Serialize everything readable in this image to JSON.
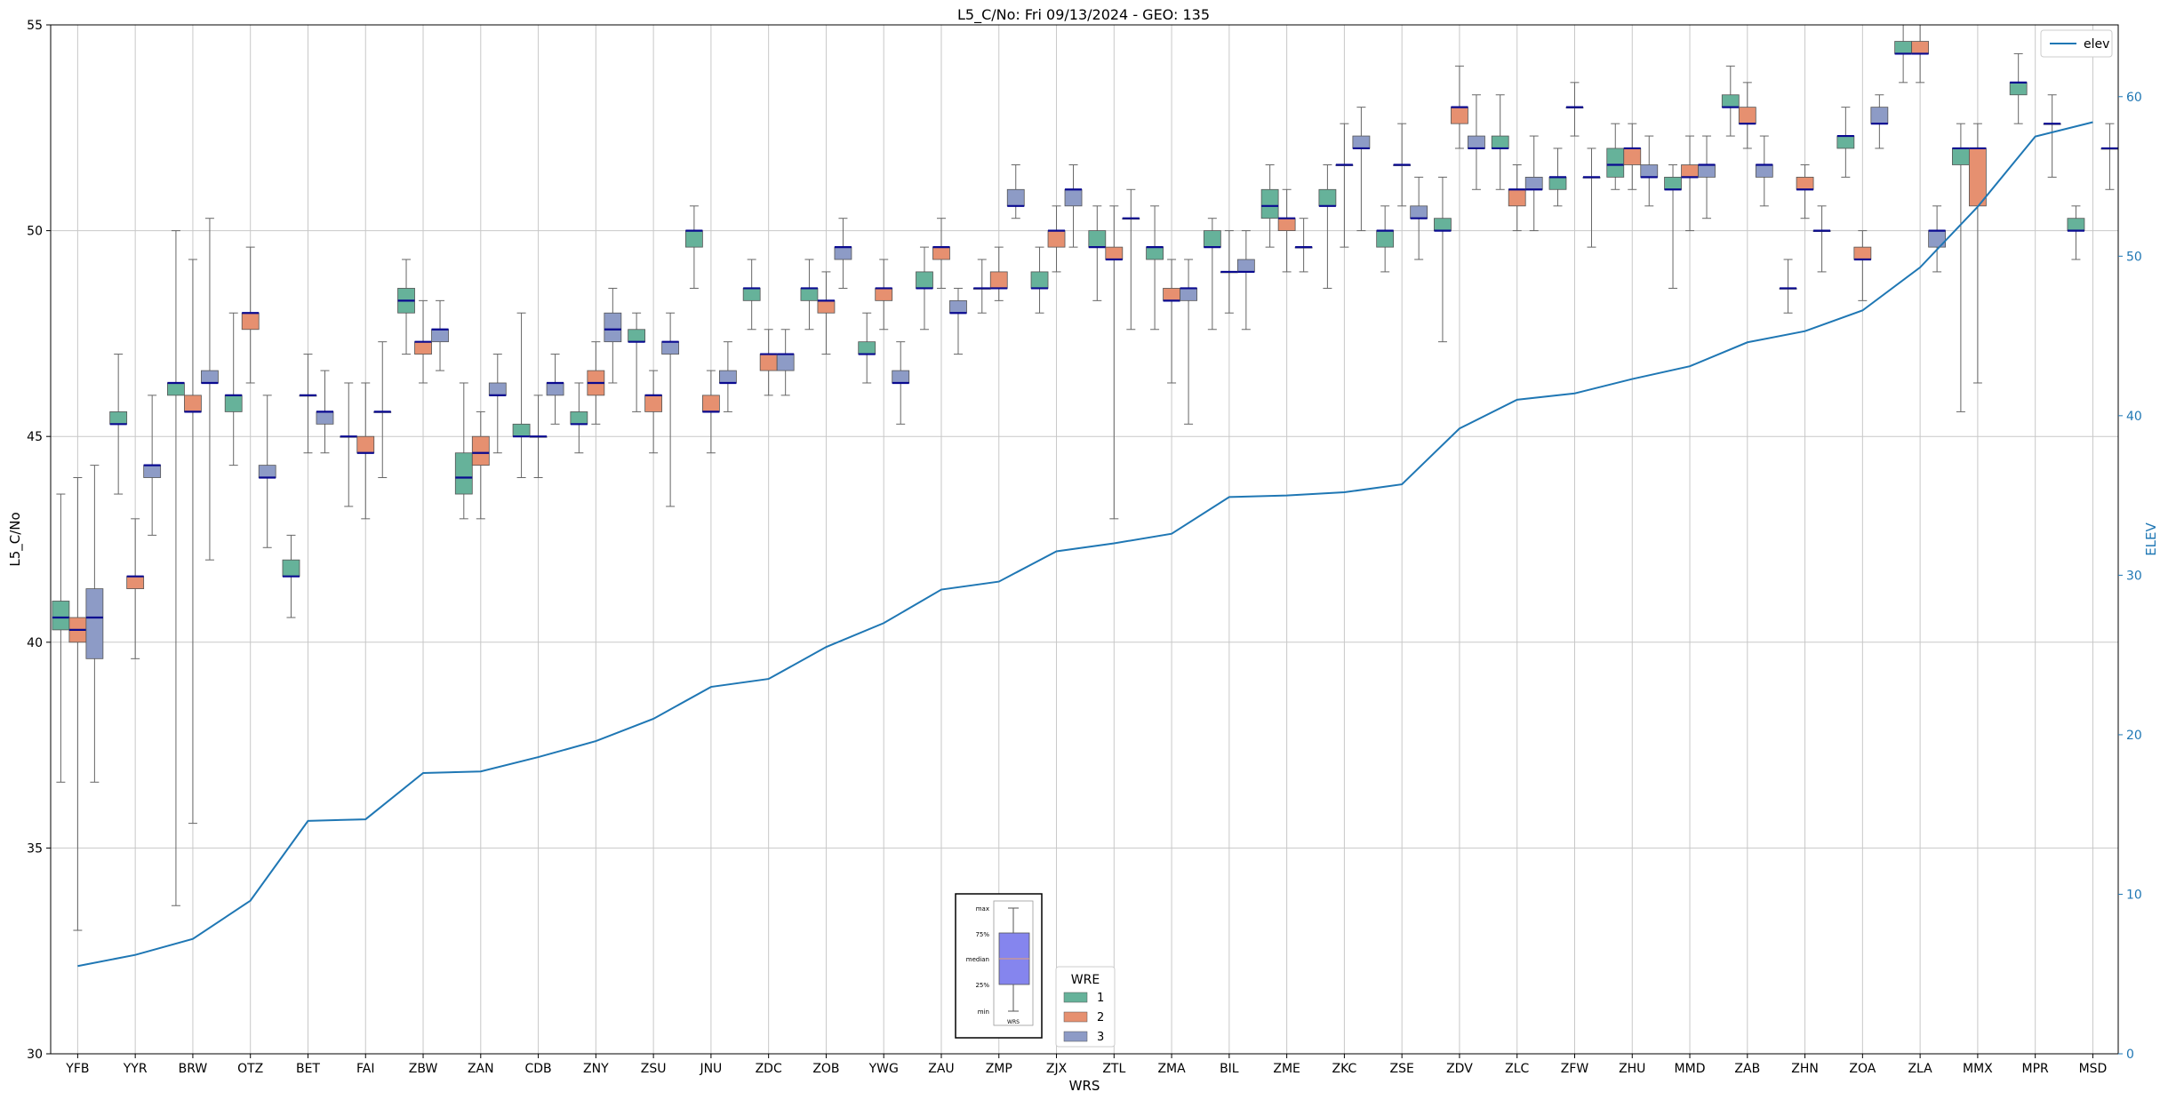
{
  "chart_data": {
    "type": "box",
    "title": "L5_C/No: Fri 09/13/2024 - GEO: 135",
    "xlabel": "WRS",
    "ylabel": "L5_C/No",
    "y2label": "ELEV",
    "ylim": [
      30,
      55
    ],
    "y2lim": [
      0,
      64.5
    ],
    "yticks": [
      30,
      35,
      40,
      45,
      50,
      55
    ],
    "y2ticks": [
      0,
      10,
      20,
      30,
      40,
      50,
      60
    ],
    "grid": true,
    "categories": [
      "YFB",
      "YYR",
      "BRW",
      "OTZ",
      "BET",
      "FAI",
      "ZBW",
      "ZAN",
      "CDB",
      "ZNY",
      "ZSU",
      "JNU",
      "ZDC",
      "ZOB",
      "YWG",
      "ZAU",
      "ZMP",
      "ZJX",
      "ZTL",
      "ZMA",
      "BIL",
      "ZME",
      "ZKC",
      "ZSE",
      "ZDV",
      "ZLC",
      "ZFW",
      "ZHU",
      "MMD",
      "ZAB",
      "ZHN",
      "ZOA",
      "ZLA",
      "MMX",
      "MPR",
      "MSD"
    ],
    "boxes": [
      {
        "cat": "YFB",
        "wre": 1,
        "min": 36.6,
        "q1": 40.3,
        "med": 40.6,
        "q3": 41.0,
        "max": 43.6
      },
      {
        "cat": "YFB",
        "wre": 2,
        "min": 33.0,
        "q1": 40.0,
        "med": 40.3,
        "q3": 40.6,
        "max": 44.0
      },
      {
        "cat": "YFB",
        "wre": 3,
        "min": 36.6,
        "q1": 39.6,
        "med": 40.6,
        "q3": 41.3,
        "max": 44.3
      },
      {
        "cat": "YYR",
        "wre": 1,
        "min": 43.6,
        "q1": 45.3,
        "med": 45.3,
        "q3": 45.6,
        "max": 47.0
      },
      {
        "cat": "YYR",
        "wre": 2,
        "min": 39.6,
        "q1": 41.3,
        "med": 41.6,
        "q3": 41.6,
        "max": 43.0
      },
      {
        "cat": "YYR",
        "wre": 3,
        "min": 42.6,
        "q1": 44.0,
        "med": 44.3,
        "q3": 44.3,
        "max": 46.0
      },
      {
        "cat": "BRW",
        "wre": 1,
        "min": 33.6,
        "q1": 46.0,
        "med": 46.3,
        "q3": 46.3,
        "max": 50.0
      },
      {
        "cat": "BRW",
        "wre": 2,
        "min": 35.6,
        "q1": 45.6,
        "med": 45.6,
        "q3": 46.0,
        "max": 49.3
      },
      {
        "cat": "BRW",
        "wre": 3,
        "min": 42.0,
        "q1": 46.3,
        "med": 46.3,
        "q3": 46.6,
        "max": 50.3
      },
      {
        "cat": "OTZ",
        "wre": 1,
        "min": 44.3,
        "q1": 45.6,
        "med": 46.0,
        "q3": 46.0,
        "max": 48.0
      },
      {
        "cat": "OTZ",
        "wre": 2,
        "min": 46.3,
        "q1": 47.6,
        "med": 48.0,
        "q3": 48.0,
        "max": 49.6
      },
      {
        "cat": "OTZ",
        "wre": 3,
        "min": 42.3,
        "q1": 44.0,
        "med": 44.0,
        "q3": 44.3,
        "max": 46.0
      },
      {
        "cat": "BET",
        "wre": 1,
        "min": 40.6,
        "q1": 41.6,
        "med": 41.6,
        "q3": 42.0,
        "max": 42.6
      },
      {
        "cat": "BET",
        "wre": 2,
        "min": 44.6,
        "q1": 46.0,
        "med": 46.0,
        "q3": 46.0,
        "max": 47.0
      },
      {
        "cat": "BET",
        "wre": 3,
        "min": 44.6,
        "q1": 45.3,
        "med": 45.6,
        "q3": 45.6,
        "max": 46.6
      },
      {
        "cat": "FAI",
        "wre": 1,
        "min": 43.3,
        "q1": 45.0,
        "med": 45.0,
        "q3": 45.0,
        "max": 46.3
      },
      {
        "cat": "FAI",
        "wre": 2,
        "min": 43.0,
        "q1": 44.6,
        "med": 44.6,
        "q3": 45.0,
        "max": 46.3
      },
      {
        "cat": "FAI",
        "wre": 3,
        "min": 44.0,
        "q1": 45.6,
        "med": 45.6,
        "q3": 45.6,
        "max": 47.3
      },
      {
        "cat": "ZBW",
        "wre": 1,
        "min": 47.0,
        "q1": 48.0,
        "med": 48.3,
        "q3": 48.6,
        "max": 49.3
      },
      {
        "cat": "ZBW",
        "wre": 2,
        "min": 46.3,
        "q1": 47.0,
        "med": 47.3,
        "q3": 47.3,
        "max": 48.3
      },
      {
        "cat": "ZBW",
        "wre": 3,
        "min": 46.6,
        "q1": 47.3,
        "med": 47.6,
        "q3": 47.6,
        "max": 48.3
      },
      {
        "cat": "ZAN",
        "wre": 1,
        "min": 43.0,
        "q1": 43.6,
        "med": 44.0,
        "q3": 44.6,
        "max": 46.3
      },
      {
        "cat": "ZAN",
        "wre": 2,
        "min": 43.0,
        "q1": 44.3,
        "med": 44.6,
        "q3": 45.0,
        "max": 45.6
      },
      {
        "cat": "ZAN",
        "wre": 3,
        "min": 44.6,
        "q1": 46.0,
        "med": 46.0,
        "q3": 46.3,
        "max": 47.0
      },
      {
        "cat": "CDB",
        "wre": 1,
        "min": 44.0,
        "q1": 45.0,
        "med": 45.0,
        "q3": 45.3,
        "max": 48.0
      },
      {
        "cat": "CDB",
        "wre": 2,
        "min": 44.0,
        "q1": 45.0,
        "med": 45.0,
        "q3": 45.0,
        "max": 46.0
      },
      {
        "cat": "CDB",
        "wre": 3,
        "min": 45.3,
        "q1": 46.0,
        "med": 46.3,
        "q3": 46.3,
        "max": 47.0
      },
      {
        "cat": "ZNY",
        "wre": 1,
        "min": 44.6,
        "q1": 45.3,
        "med": 45.3,
        "q3": 45.6,
        "max": 46.3
      },
      {
        "cat": "ZNY",
        "wre": 2,
        "min": 45.3,
        "q1": 46.0,
        "med": 46.3,
        "q3": 46.6,
        "max": 47.3
      },
      {
        "cat": "ZNY",
        "wre": 3,
        "min": 46.3,
        "q1": 47.3,
        "med": 47.6,
        "q3": 48.0,
        "max": 48.6
      },
      {
        "cat": "ZSU",
        "wre": 1,
        "min": 45.6,
        "q1": 47.3,
        "med": 47.3,
        "q3": 47.6,
        "max": 48.0
      },
      {
        "cat": "ZSU",
        "wre": 2,
        "min": 44.6,
        "q1": 45.6,
        "med": 46.0,
        "q3": 46.0,
        "max": 46.6
      },
      {
        "cat": "ZSU",
        "wre": 3,
        "min": 43.3,
        "q1": 47.0,
        "med": 47.3,
        "q3": 47.3,
        "max": 48.0
      },
      {
        "cat": "JNU",
        "wre": 1,
        "min": 48.6,
        "q1": 49.6,
        "med": 50.0,
        "q3": 50.0,
        "max": 50.6
      },
      {
        "cat": "JNU",
        "wre": 2,
        "min": 44.6,
        "q1": 45.6,
        "med": 45.6,
        "q3": 46.0,
        "max": 46.6
      },
      {
        "cat": "JNU",
        "wre": 3,
        "min": 45.6,
        "q1": 46.3,
        "med": 46.3,
        "q3": 46.6,
        "max": 47.3
      },
      {
        "cat": "ZDC",
        "wre": 1,
        "min": 47.6,
        "q1": 48.3,
        "med": 48.6,
        "q3": 48.6,
        "max": 49.3
      },
      {
        "cat": "ZDC",
        "wre": 2,
        "min": 46.0,
        "q1": 46.6,
        "med": 47.0,
        "q3": 47.0,
        "max": 47.6
      },
      {
        "cat": "ZDC",
        "wre": 3,
        "min": 46.0,
        "q1": 46.6,
        "med": 47.0,
        "q3": 47.0,
        "max": 47.6
      },
      {
        "cat": "ZOB",
        "wre": 1,
        "min": 47.6,
        "q1": 48.3,
        "med": 48.6,
        "q3": 48.6,
        "max": 49.3
      },
      {
        "cat": "ZOB",
        "wre": 2,
        "min": 47.0,
        "q1": 48.0,
        "med": 48.3,
        "q3": 48.3,
        "max": 49.0
      },
      {
        "cat": "ZOB",
        "wre": 3,
        "min": 48.6,
        "q1": 49.3,
        "med": 49.6,
        "q3": 49.6,
        "max": 50.3
      },
      {
        "cat": "YWG",
        "wre": 1,
        "min": 46.3,
        "q1": 47.0,
        "med": 47.0,
        "q3": 47.3,
        "max": 48.0
      },
      {
        "cat": "YWG",
        "wre": 2,
        "min": 47.6,
        "q1": 48.3,
        "med": 48.6,
        "q3": 48.6,
        "max": 49.3
      },
      {
        "cat": "YWG",
        "wre": 3,
        "min": 45.3,
        "q1": 46.3,
        "med": 46.3,
        "q3": 46.6,
        "max": 47.3
      },
      {
        "cat": "ZAU",
        "wre": 1,
        "min": 47.6,
        "q1": 48.6,
        "med": 48.6,
        "q3": 49.0,
        "max": 49.6
      },
      {
        "cat": "ZAU",
        "wre": 2,
        "min": 48.6,
        "q1": 49.3,
        "med": 49.6,
        "q3": 49.6,
        "max": 50.3
      },
      {
        "cat": "ZAU",
        "wre": 3,
        "min": 47.0,
        "q1": 48.0,
        "med": 48.0,
        "q3": 48.3,
        "max": 48.6
      },
      {
        "cat": "ZMP",
        "wre": 1,
        "min": 48.0,
        "q1": 48.6,
        "med": 48.6,
        "q3": 48.6,
        "max": 49.3
      },
      {
        "cat": "ZMP",
        "wre": 2,
        "min": 48.3,
        "q1": 48.6,
        "med": 48.6,
        "q3": 49.0,
        "max": 49.6
      },
      {
        "cat": "ZMP",
        "wre": 3,
        "min": 50.3,
        "q1": 50.6,
        "med": 50.6,
        "q3": 51.0,
        "max": 51.6
      },
      {
        "cat": "ZJX",
        "wre": 1,
        "min": 48.0,
        "q1": 48.6,
        "med": 48.6,
        "q3": 49.0,
        "max": 49.6
      },
      {
        "cat": "ZJX",
        "wre": 2,
        "min": 49.0,
        "q1": 49.6,
        "med": 50.0,
        "q3": 50.0,
        "max": 50.6
      },
      {
        "cat": "ZJX",
        "wre": 3,
        "min": 49.6,
        "q1": 50.6,
        "med": 51.0,
        "q3": 51.0,
        "max": 51.6
      },
      {
        "cat": "ZTL",
        "wre": 1,
        "min": 48.3,
        "q1": 49.6,
        "med": 49.6,
        "q3": 50.0,
        "max": 50.6
      },
      {
        "cat": "ZTL",
        "wre": 2,
        "min": 43.0,
        "q1": 49.3,
        "med": 49.3,
        "q3": 49.6,
        "max": 50.6
      },
      {
        "cat": "ZTL",
        "wre": 3,
        "min": 47.6,
        "q1": 50.3,
        "med": 50.3,
        "q3": 50.3,
        "max": 51.0
      },
      {
        "cat": "ZMA",
        "wre": 1,
        "min": 47.6,
        "q1": 49.3,
        "med": 49.6,
        "q3": 49.6,
        "max": 50.6
      },
      {
        "cat": "ZMA",
        "wre": 2,
        "min": 46.3,
        "q1": 48.3,
        "med": 48.3,
        "q3": 48.6,
        "max": 49.3
      },
      {
        "cat": "ZMA",
        "wre": 3,
        "min": 45.3,
        "q1": 48.3,
        "med": 48.6,
        "q3": 48.6,
        "max": 49.3
      },
      {
        "cat": "BIL",
        "wre": 1,
        "min": 47.6,
        "q1": 49.6,
        "med": 49.6,
        "q3": 50.0,
        "max": 50.3
      },
      {
        "cat": "BIL",
        "wre": 2,
        "min": 48.0,
        "q1": 49.0,
        "med": 49.0,
        "q3": 49.0,
        "max": 50.0
      },
      {
        "cat": "BIL",
        "wre": 3,
        "min": 47.6,
        "q1": 49.0,
        "med": 49.0,
        "q3": 49.3,
        "max": 50.0
      },
      {
        "cat": "ZME",
        "wre": 1,
        "min": 49.6,
        "q1": 50.3,
        "med": 50.6,
        "q3": 51.0,
        "max": 51.6
      },
      {
        "cat": "ZME",
        "wre": 2,
        "min": 49.0,
        "q1": 50.0,
        "med": 50.3,
        "q3": 50.3,
        "max": 51.0
      },
      {
        "cat": "ZME",
        "wre": 3,
        "min": 49.0,
        "q1": 49.6,
        "med": 49.6,
        "q3": 49.6,
        "max": 50.3
      },
      {
        "cat": "ZKC",
        "wre": 1,
        "min": 48.6,
        "q1": 50.6,
        "med": 50.6,
        "q3": 51.0,
        "max": 51.6
      },
      {
        "cat": "ZKC",
        "wre": 2,
        "min": 49.6,
        "q1": 51.6,
        "med": 51.6,
        "q3": 51.6,
        "max": 52.6
      },
      {
        "cat": "ZKC",
        "wre": 3,
        "min": 50.0,
        "q1": 52.0,
        "med": 52.0,
        "q3": 52.3,
        "max": 53.0
      },
      {
        "cat": "ZSE",
        "wre": 1,
        "min": 49.0,
        "q1": 49.6,
        "med": 50.0,
        "q3": 50.0,
        "max": 50.6
      },
      {
        "cat": "ZSE",
        "wre": 2,
        "min": 50.6,
        "q1": 51.6,
        "med": 51.6,
        "q3": 51.6,
        "max": 52.6
      },
      {
        "cat": "ZSE",
        "wre": 3,
        "min": 49.3,
        "q1": 50.3,
        "med": 50.3,
        "q3": 50.6,
        "max": 51.3
      },
      {
        "cat": "ZDV",
        "wre": 1,
        "min": 47.3,
        "q1": 50.0,
        "med": 50.0,
        "q3": 50.3,
        "max": 51.3
      },
      {
        "cat": "ZDV",
        "wre": 2,
        "min": 52.0,
        "q1": 52.6,
        "med": 53.0,
        "q3": 53.0,
        "max": 54.0
      },
      {
        "cat": "ZDV",
        "wre": 3,
        "min": 51.0,
        "q1": 52.0,
        "med": 52.0,
        "q3": 52.3,
        "max": 53.3
      },
      {
        "cat": "ZLC",
        "wre": 1,
        "min": 51.0,
        "q1": 52.0,
        "med": 52.0,
        "q3": 52.3,
        "max": 53.3
      },
      {
        "cat": "ZLC",
        "wre": 2,
        "min": 50.0,
        "q1": 50.6,
        "med": 51.0,
        "q3": 51.0,
        "max": 51.6
      },
      {
        "cat": "ZLC",
        "wre": 3,
        "min": 50.0,
        "q1": 51.0,
        "med": 51.0,
        "q3": 51.3,
        "max": 52.3
      },
      {
        "cat": "ZFW",
        "wre": 1,
        "min": 50.6,
        "q1": 51.0,
        "med": 51.3,
        "q3": 51.3,
        "max": 52.0
      },
      {
        "cat": "ZFW",
        "wre": 2,
        "min": 52.3,
        "q1": 53.0,
        "med": 53.0,
        "q3": 53.0,
        "max": 53.6
      },
      {
        "cat": "ZFW",
        "wre": 3,
        "min": 49.6,
        "q1": 51.3,
        "med": 51.3,
        "q3": 51.3,
        "max": 52.0
      },
      {
        "cat": "ZHU",
        "wre": 1,
        "min": 51.0,
        "q1": 51.3,
        "med": 51.6,
        "q3": 52.0,
        "max": 52.6
      },
      {
        "cat": "ZHU",
        "wre": 2,
        "min": 51.0,
        "q1": 51.6,
        "med": 52.0,
        "q3": 52.0,
        "max": 52.6
      },
      {
        "cat": "ZHU",
        "wre": 3,
        "min": 50.6,
        "q1": 51.3,
        "med": 51.3,
        "q3": 51.6,
        "max": 52.3
      },
      {
        "cat": "MMD",
        "wre": 1,
        "min": 48.6,
        "q1": 51.0,
        "med": 51.0,
        "q3": 51.3,
        "max": 51.6
      },
      {
        "cat": "MMD",
        "wre": 2,
        "min": 50.0,
        "q1": 51.3,
        "med": 51.3,
        "q3": 51.6,
        "max": 52.3
      },
      {
        "cat": "MMD",
        "wre": 3,
        "min": 50.3,
        "q1": 51.3,
        "med": 51.6,
        "q3": 51.6,
        "max": 52.3
      },
      {
        "cat": "ZAB",
        "wre": 1,
        "min": 52.3,
        "q1": 53.0,
        "med": 53.0,
        "q3": 53.3,
        "max": 54.0
      },
      {
        "cat": "ZAB",
        "wre": 2,
        "min": 52.0,
        "q1": 52.6,
        "med": 52.6,
        "q3": 53.0,
        "max": 53.6
      },
      {
        "cat": "ZAB",
        "wre": 3,
        "min": 50.6,
        "q1": 51.3,
        "med": 51.6,
        "q3": 51.6,
        "max": 52.3
      },
      {
        "cat": "ZHN",
        "wre": 1,
        "min": 48.0,
        "q1": 48.6,
        "med": 48.6,
        "q3": 48.6,
        "max": 49.3
      },
      {
        "cat": "ZHN",
        "wre": 2,
        "min": 50.3,
        "q1": 51.0,
        "med": 51.0,
        "q3": 51.3,
        "max": 51.6
      },
      {
        "cat": "ZHN",
        "wre": 3,
        "min": 49.0,
        "q1": 50.0,
        "med": 50.0,
        "q3": 50.0,
        "max": 50.6
      },
      {
        "cat": "ZOA",
        "wre": 1,
        "min": 51.3,
        "q1": 52.0,
        "med": 52.3,
        "q3": 52.3,
        "max": 53.0
      },
      {
        "cat": "ZOA",
        "wre": 2,
        "min": 48.3,
        "q1": 49.3,
        "med": 49.3,
        "q3": 49.6,
        "max": 50.0
      },
      {
        "cat": "ZOA",
        "wre": 3,
        "min": 52.0,
        "q1": 52.6,
        "med": 52.6,
        "q3": 53.0,
        "max": 53.3
      },
      {
        "cat": "ZLA",
        "wre": 1,
        "min": 53.6,
        "q1": 54.3,
        "med": 54.3,
        "q3": 54.6,
        "max": 55.0
      },
      {
        "cat": "ZLA",
        "wre": 2,
        "min": 53.6,
        "q1": 54.3,
        "med": 54.3,
        "q3": 54.6,
        "max": 55.0
      },
      {
        "cat": "ZLA",
        "wre": 3,
        "min": 49.0,
        "q1": 49.6,
        "med": 50.0,
        "q3": 50.0,
        "max": 50.6
      },
      {
        "cat": "MMX",
        "wre": 1,
        "min": 45.6,
        "q1": 51.6,
        "med": 52.0,
        "q3": 52.0,
        "max": 52.6
      },
      {
        "cat": "MMX",
        "wre": 2,
        "min": 46.3,
        "q1": 50.6,
        "med": 52.0,
        "q3": 52.0,
        "max": 52.6
      },
      {
        "cat": "MPR",
        "wre": 1,
        "min": 52.6,
        "q1": 53.3,
        "med": 53.6,
        "q3": 53.6,
        "max": 54.3
      },
      {
        "cat": "MPR",
        "wre": 3,
        "min": 51.3,
        "q1": 52.6,
        "med": 52.6,
        "q3": 52.6,
        "max": 53.3
      },
      {
        "cat": "MSD",
        "wre": 1,
        "min": 49.3,
        "q1": 50.0,
        "med": 50.0,
        "q3": 50.3,
        "max": 50.6
      },
      {
        "cat": "MSD",
        "wre": 3,
        "min": 51.0,
        "q1": 52.0,
        "med": 52.0,
        "q3": 52.0,
        "max": 52.6
      }
    ],
    "elev_series": {
      "name": "elev",
      "color": "#1f77b4",
      "values": [
        5.5,
        6.2,
        7.2,
        9.6,
        14.6,
        14.7,
        17.6,
        17.7,
        18.6,
        19.6,
        21.0,
        23.0,
        23.5,
        25.5,
        27.0,
        29.1,
        29.6,
        31.5,
        32.0,
        32.6,
        34.9,
        35.0,
        35.2,
        35.7,
        39.2,
        41.0,
        41.4,
        42.3,
        43.1,
        44.6,
        45.3,
        46.6,
        49.3,
        53.1,
        57.5,
        58.4
      ]
    },
    "legend": {
      "title": "WRE",
      "entries": [
        {
          "label": "1",
          "color": "#66b29a"
        },
        {
          "label": "2",
          "color": "#e69070"
        },
        {
          "label": "3",
          "color": "#8d9bc6"
        }
      ],
      "elev_label": "elev",
      "placement_wre": "bottom-center",
      "placement_elev": "top-right"
    },
    "inset_legend": {
      "labels": [
        "max",
        "75%",
        "median",
        "25%",
        "min"
      ],
      "xlabel": "WRS"
    }
  }
}
